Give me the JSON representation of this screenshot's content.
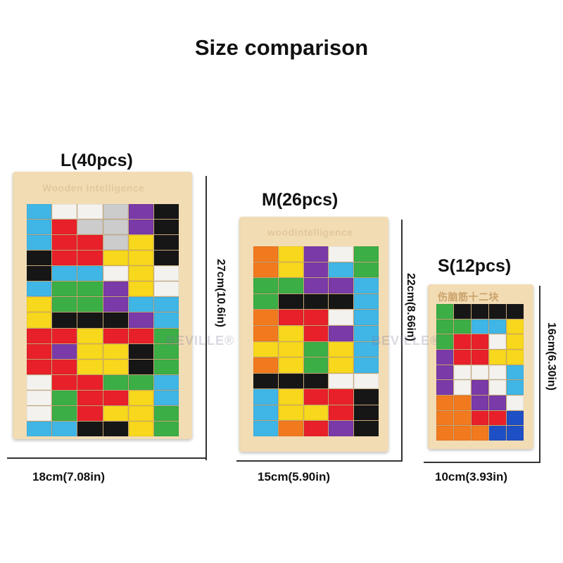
{
  "title": "Size comparison",
  "watermark": "BEVILLE®",
  "products": {
    "large": {
      "label": "L(40pcs)",
      "engraving": "Wooden Intelligence",
      "width": "18cm(7.08in)",
      "height": "27cm(10.6in)",
      "grid": [
        "CWWMPK",
        "CRMMPK",
        "CRRMYK",
        "KRRYYK",
        "KCCWYW",
        "CGGPYW",
        "YGGPCC",
        "YKKKPC",
        "RRYRRG",
        "RPYYKG",
        "RRYYKG",
        "WRRGGC",
        "WGRRYC",
        "WGRYYG",
        "CCKKYG"
      ]
    },
    "medium": {
      "label": "M(26pcs)",
      "engraving": "woodintelligence",
      "width": "15cm(5.90in)",
      "height": "22cm(8.66in)",
      "grid": [
        "OYPWG",
        "OYPCG",
        "GGPPC",
        "GKKKC",
        "ORRWC",
        "OYRPC",
        "YYGYC",
        "OYGYC",
        "KKKWW",
        "CYRRK",
        "CYYRK",
        "CORPK"
      ]
    },
    "small": {
      "label": "S(12pcs)",
      "engraving": "伤脑筋十二块",
      "width": "10cm(3.93in)",
      "height": "16cm(6.30in)",
      "grid": [
        "GKKKK",
        "GGCCY",
        "GRRWY",
        "PRRYY",
        "PWWWC",
        "PWPWC",
        "OOPPW",
        "OORRB",
        "OOOBB"
      ]
    }
  },
  "colors": {
    "R": "#e8202a",
    "Y": "#f8d81c",
    "G": "#3cae46",
    "C": "#3fb6e6",
    "P": "#7a3aa8",
    "K": "#161616",
    "W": "#f4f2ee",
    "O": "#f27a1e",
    "B": "#1f4fc4"
  }
}
